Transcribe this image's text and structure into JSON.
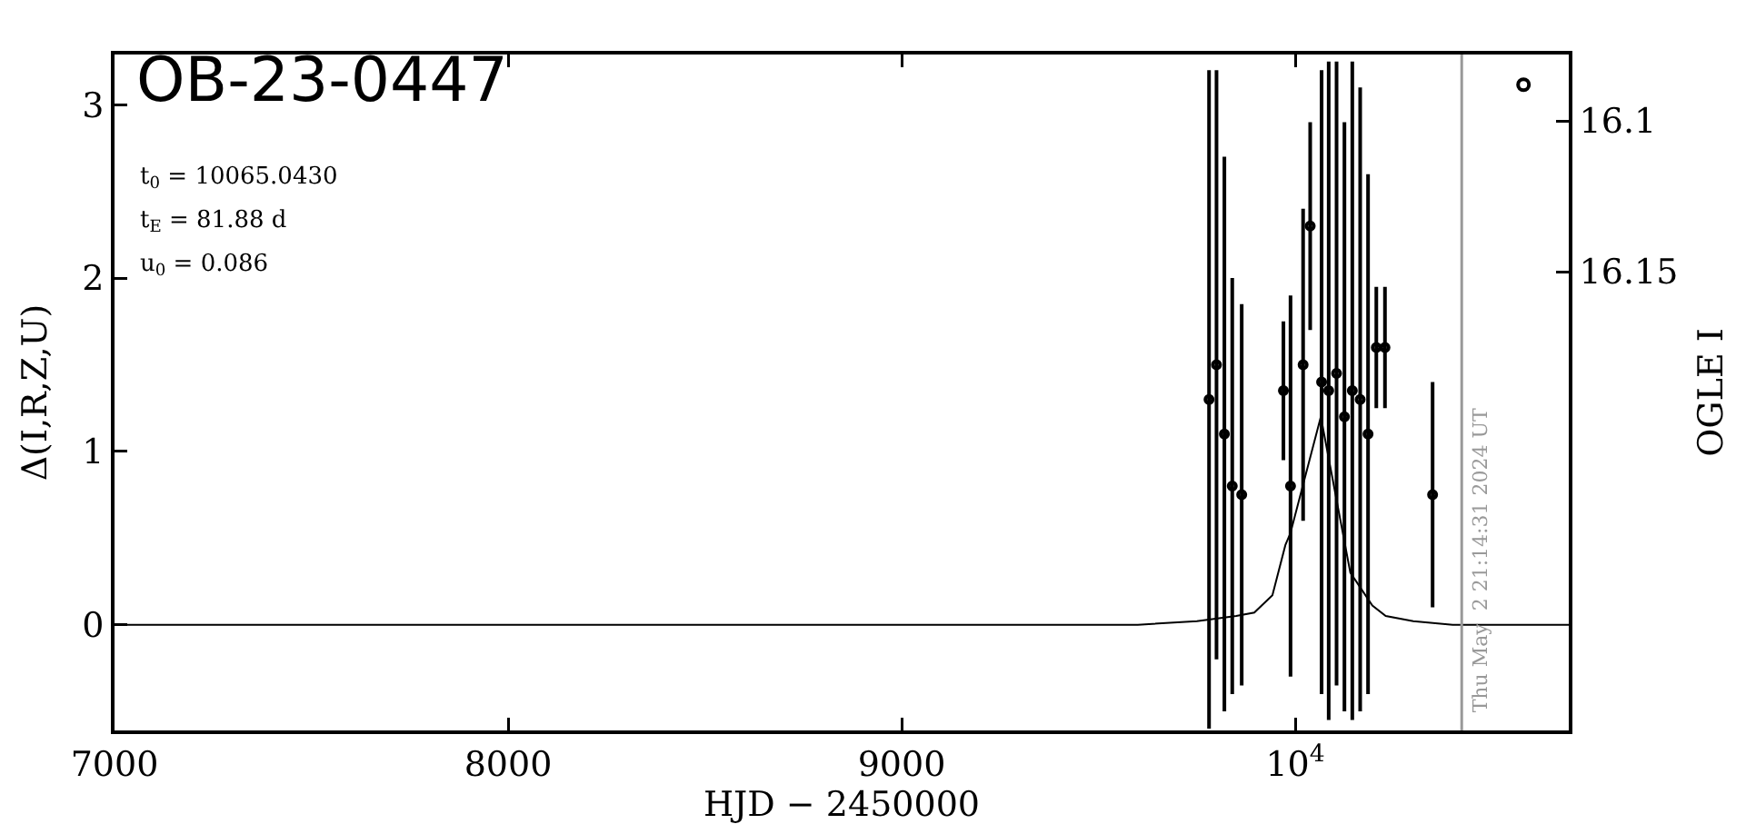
{
  "chart_data": {
    "type": "scatter",
    "title": "OB-23-0447",
    "xlabel": "HJD − 2450000",
    "ylabel": "Δ(I,R,Z,U)",
    "y2label": "OGLE I",
    "annotations": [
      "t$_{0}$ = 10065.0430",
      "t$_{E}$ = 81.88 d",
      "u$_{0}$ = 0.086",
      "Thu May  2 21:14:31 2024 UT"
    ],
    "xlim": [
      7000,
      10695
    ],
    "xticks": [
      7000,
      8000,
      9000,
      {
        "value": 10000,
        "label": "10$^{4}$"
      }
    ],
    "ylim": [
      -0.61,
      3.29
    ],
    "yticks": [
      0,
      1,
      2,
      3
    ],
    "y2lim": [
      16.302,
      16.078
    ],
    "y2ticks": [
      16.1,
      16.15
    ],
    "ref_lines": [
      {
        "axis": "x",
        "value": 10423,
        "color": "#999999"
      }
    ],
    "series": [
      {
        "type": "line",
        "color": "#000000",
        "marker": "none",
        "line_style": "solid",
        "x": [
          7000,
          9600,
          9750,
          9850,
          9896,
          9942,
          9975,
          9988,
          10065,
          10140,
          10196,
          10230,
          10300,
          10400,
          10695
        ],
        "values": [
          0,
          0,
          0.02,
          0.05,
          0.07,
          0.17,
          0.46,
          0.53,
          1.2,
          0.3,
          0.11,
          0.05,
          0.02,
          0,
          0
        ]
      },
      {
        "color": "#000000",
        "marker": "circle",
        "x": [
          9781,
          9800,
          9820,
          9840,
          9864,
          9970,
          9988,
          10020,
          10038,
          10067,
          10085,
          10105,
          10125,
          10145,
          10165,
          10185,
          10206,
          10228,
          10349
        ],
        "values": [
          1.3,
          1.5,
          1.1,
          0.8,
          0.75,
          1.35,
          0.8,
          1.5,
          2.3,
          1.4,
          1.35,
          1.45,
          1.2,
          1.35,
          1.3,
          1.1,
          1.6,
          1.6,
          0.75
        ],
        "errors": [
          1.9,
          1.7,
          1.6,
          1.2,
          1.1,
          0.4,
          1.1,
          0.9,
          0.6,
          1.8,
          1.9,
          1.8,
          1.7,
          1.9,
          1.8,
          1.5,
          0.35,
          0.35,
          0.65
        ]
      },
      {
        "axis": "y2",
        "color": "#000000",
        "marker": "circle",
        "x": [
          10580
        ],
        "values": [
          16.088
        ]
      }
    ]
  }
}
